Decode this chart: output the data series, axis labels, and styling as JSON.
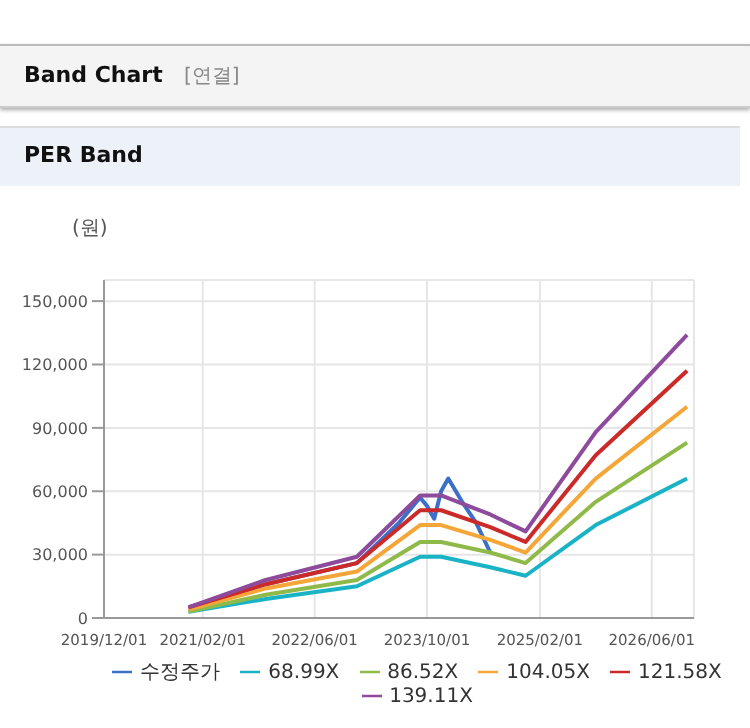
{
  "chart_data": {
    "type": "line",
    "title": "Band Chart",
    "subtitle": "PER Band",
    "annotations": [
      "[연결]"
    ],
    "ylabel": "(원)",
    "x": [
      "2020-12",
      "2021-11",
      "2022-12",
      "2023-09",
      "2023-12",
      "2024-07",
      "2024-12",
      "2025-10",
      "2026-11"
    ],
    "series": [
      {
        "name": "수정주가",
        "color": "#3d6fc6",
        "x": [
          "2020-12",
          "2021-11",
          "2022-12",
          "2023-06",
          "2023-09",
          "2023-10",
          "2023-11",
          "2023-12",
          "2024-01",
          "2024-03",
          "2024-05",
          "2024-07"
        ],
        "values": [
          5000,
          16000,
          26000,
          45000,
          57000,
          53000,
          47000,
          60000,
          66000,
          55000,
          45000,
          31000
        ]
      },
      {
        "name": "68.99X",
        "color": "#1ab3c6",
        "values": [
          3000,
          9000,
          15000,
          29000,
          29000,
          24000,
          20000,
          44000,
          66000
        ]
      },
      {
        "name": "86.52X",
        "color": "#8fba4a",
        "values": [
          3000,
          11000,
          18000,
          36000,
          36000,
          31000,
          26000,
          55000,
          83000
        ]
      },
      {
        "name": "104.05X",
        "color": "#f5a638",
        "values": [
          4000,
          14000,
          22000,
          44000,
          44000,
          37000,
          31000,
          66000,
          100000
        ]
      },
      {
        "name": "121.58X",
        "color": "#cc2929",
        "values": [
          5000,
          16000,
          26000,
          51000,
          51000,
          43000,
          36000,
          77000,
          117000
        ]
      },
      {
        "name": "139.11X",
        "color": "#8e4a9b",
        "values": [
          5000,
          18000,
          29000,
          58000,
          58000,
          49000,
          41000,
          88000,
          134000
        ]
      }
    ],
    "xlim": [
      "2019-12-01",
      "2026-12-01"
    ],
    "xticks": [
      {
        "value": "2019-12-01",
        "label": "2019/12/01"
      },
      {
        "value": "2021-02-01",
        "label": "2021/02/01"
      },
      {
        "value": "2022-06-01",
        "label": "2022/06/01"
      },
      {
        "value": "2023-10-01",
        "label": "2023/10/01"
      },
      {
        "value": "2025-02-01",
        "label": "2025/02/01"
      },
      {
        "value": "2026-06-01",
        "label": "2026/06/01"
      }
    ],
    "ylim": [
      0,
      160000
    ],
    "yticks": [
      0,
      {
        "value": 30000,
        "label": "30,000"
      },
      {
        "value": 60000,
        "label": "60,000"
      },
      {
        "value": 90000,
        "label": "90,000"
      },
      {
        "value": 120000,
        "label": "120,000"
      },
      {
        "value": 150000,
        "label": "150,000"
      }
    ],
    "grid": true,
    "legend": "bottom",
    "marker": "none",
    "line_style": "solid"
  }
}
